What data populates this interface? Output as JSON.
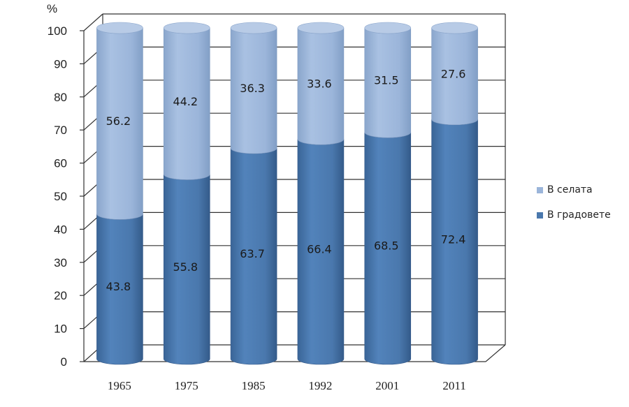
{
  "chart_data": {
    "type": "bar",
    "stacked": true,
    "style": "3d-cylinder",
    "y_unit": "%",
    "ylim": [
      0,
      100
    ],
    "yticks": [
      0,
      10,
      20,
      30,
      40,
      50,
      60,
      70,
      80,
      90,
      100
    ],
    "grid": true,
    "legend_position": "right",
    "categories": [
      "1965",
      "1975",
      "1985",
      "1992",
      "2001",
      "2011"
    ],
    "series": [
      {
        "name": "В градовете",
        "color": "#4a78ad",
        "values": [
          43.8,
          55.8,
          63.7,
          66.4,
          68.5,
          72.4
        ]
      },
      {
        "name": "В селата",
        "color": "#9bb5da",
        "values": [
          56.2,
          44.2,
          36.3,
          33.6,
          31.5,
          27.6
        ]
      }
    ]
  }
}
